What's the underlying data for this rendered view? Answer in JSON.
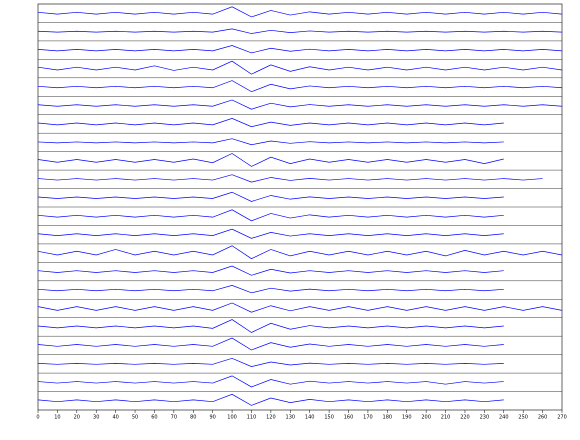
{
  "chart_data": {
    "type": "line",
    "color": "#0000ff",
    "x": [
      0,
      10,
      20,
      30,
      40,
      50,
      60,
      70,
      80,
      90,
      100,
      110,
      120,
      130,
      140,
      150,
      160,
      170,
      180,
      190,
      200,
      210,
      220,
      230,
      240,
      250,
      260,
      270
    ],
    "xlim": [
      0,
      270
    ],
    "xticks": [
      0,
      10,
      20,
      30,
      40,
      50,
      60,
      70,
      80,
      90,
      100,
      110,
      120,
      130,
      140,
      150,
      160,
      170,
      180,
      190,
      200,
      210,
      220,
      230,
      240,
      250,
      260,
      270
    ],
    "ylim": [
      -10,
      10
    ],
    "series": [
      {
        "values": [
          1,
          1,
          1,
          1,
          1,
          1,
          1,
          1,
          1,
          1,
          7,
          4,
          3,
          2,
          1.5,
          1,
          1,
          1,
          1,
          1,
          1,
          1,
          1,
          1,
          1,
          1,
          1,
          1
        ]
      },
      {
        "values": [
          0.5,
          0.5,
          0.5,
          0.5,
          0.5,
          0.5,
          0.5,
          0.5,
          0.5,
          0.5,
          3,
          2,
          1.5,
          1,
          0.8,
          0.5,
          0.5,
          0.5,
          0.5,
          0.5,
          0.5,
          0.5,
          0.5,
          0.5,
          0.5,
          0.5,
          0.5,
          0.5
        ]
      },
      {
        "values": [
          0.8,
          0.8,
          0.8,
          0.8,
          0.8,
          0.8,
          0.8,
          0.8,
          0.8,
          0.8,
          5,
          3,
          2,
          1.2,
          1,
          0.8,
          0.8,
          0.8,
          0.8,
          0.8,
          0.8,
          0.8,
          0.8,
          0.8,
          0.8,
          0.8,
          0.8,
          0.8
        ]
      },
      {
        "values": [
          1.5,
          1.5,
          1.5,
          1.5,
          1.5,
          1.5,
          3,
          2,
          1.5,
          1.5,
          8,
          6,
          4,
          3,
          2,
          1.5,
          1.5,
          1.5,
          1.5,
          1.5,
          1.5,
          1.5,
          1.5,
          1.5,
          1.5,
          1.5,
          1.5,
          1.5
        ]
      },
      {
        "values": [
          0.8,
          0.8,
          0.8,
          0.8,
          0.8,
          0.8,
          0.8,
          0.8,
          0.8,
          0.8,
          7,
          5,
          3,
          2,
          1.2,
          0.8,
          0.8,
          0.8,
          0.8,
          0.8,
          0.8,
          0.8,
          0.8,
          0.8,
          0.8,
          0.8,
          0.8,
          0.8
        ]
      },
      {
        "values": [
          0.8,
          0.8,
          0.8,
          0.8,
          0.8,
          0.8,
          0.8,
          0.8,
          0.8,
          0.8,
          6,
          4,
          2.5,
          1.5,
          1,
          0.8,
          0.8,
          0.8,
          0.8,
          0.8,
          0.8,
          0.8,
          0.8,
          0.8,
          0.8,
          0.8,
          0.8,
          0.8
        ]
      },
      {
        "values": [
          1,
          1,
          1,
          1,
          1,
          1,
          1,
          1,
          1,
          1,
          6,
          3,
          2,
          1.5,
          1,
          1,
          1,
          1,
          1,
          1,
          1,
          1,
          1,
          1,
          1,
          null,
          null,
          null
        ]
      },
      {
        "values": [
          0.5,
          0.5,
          0.5,
          0.5,
          0.5,
          0.5,
          0.5,
          0.5,
          0.5,
          0.5,
          4,
          2.5,
          1.5,
          1,
          0.8,
          0.5,
          0.5,
          0.5,
          0.5,
          0.5,
          0.5,
          0.5,
          0.5,
          0.5,
          0.5,
          null,
          null,
          null
        ]
      },
      {
        "values": [
          1.5,
          1.5,
          1.5,
          1.5,
          1.5,
          1.5,
          1.5,
          1.5,
          2,
          2,
          8,
          6,
          4,
          3,
          2,
          1.5,
          1.5,
          1.5,
          1.5,
          1.5,
          1.5,
          1.5,
          1.5,
          3,
          2,
          null,
          null,
          null
        ]
      },
      {
        "values": [
          0.8,
          0.8,
          0.8,
          0.8,
          0.8,
          0.8,
          0.8,
          0.8,
          0.8,
          0.8,
          5,
          3,
          2,
          1.2,
          1,
          0.8,
          0.8,
          0.8,
          0.8,
          0.8,
          0.8,
          0.8,
          0.8,
          0.8,
          0.8,
          0.8,
          0.8,
          null
        ]
      },
      {
        "values": [
          0.8,
          0.8,
          0.8,
          0.8,
          0.8,
          0.8,
          0.8,
          0.8,
          0.8,
          0.8,
          6,
          4,
          2.5,
          1.5,
          1,
          0.8,
          0.8,
          0.8,
          0.8,
          0.8,
          0.8,
          0.8,
          0.8,
          0.8,
          0.8,
          null,
          null,
          null
        ]
      },
      {
        "values": [
          1,
          1,
          1,
          1,
          1,
          1,
          1,
          1,
          1,
          1,
          7,
          5,
          3,
          2,
          1.5,
          1,
          1,
          1,
          1,
          1,
          1,
          1,
          1,
          1,
          1,
          null,
          null,
          null
        ]
      },
      {
        "values": [
          1,
          1,
          1,
          1,
          1,
          1,
          1,
          1,
          1,
          1,
          6,
          4,
          2.5,
          1.5,
          1,
          1,
          1,
          1,
          1,
          1,
          1,
          1,
          1,
          1,
          1,
          null,
          null,
          null
        ]
      },
      {
        "values": [
          2,
          2,
          2,
          2,
          4,
          2,
          2,
          2,
          2,
          2,
          8,
          6,
          4,
          3,
          2,
          2,
          2,
          2,
          2,
          2,
          2,
          3,
          3,
          2,
          2,
          2,
          2,
          2
        ]
      },
      {
        "values": [
          1,
          1,
          1,
          1,
          1,
          1,
          1,
          1,
          1,
          1,
          6,
          4,
          2.5,
          1.5,
          1,
          1,
          1,
          1,
          1,
          1,
          1,
          1,
          1,
          1,
          1,
          null,
          null,
          null
        ]
      },
      {
        "values": [
          0.8,
          0.8,
          0.8,
          0.8,
          0.8,
          0.8,
          0.8,
          0.8,
          0.8,
          0.8,
          5,
          3,
          2,
          1.2,
          1,
          0.8,
          0.8,
          0.8,
          0.8,
          0.8,
          0.8,
          0.8,
          0.8,
          0.8,
          0.8,
          null,
          null,
          null
        ]
      },
      {
        "values": [
          2,
          2,
          2,
          2,
          2,
          2,
          2,
          2,
          2,
          2,
          6,
          4,
          3,
          2.5,
          2,
          2,
          2,
          2,
          2,
          2,
          2,
          2,
          2,
          2,
          2,
          2,
          2,
          2
        ]
      },
      {
        "values": [
          1,
          1,
          1,
          1,
          1,
          1,
          1,
          1,
          1,
          1.5,
          8,
          6,
          4,
          2.5,
          1.5,
          1,
          1,
          1,
          1,
          1,
          1,
          1,
          1,
          1,
          1,
          null,
          null,
          null
        ]
      },
      {
        "values": [
          1,
          1,
          1,
          1,
          1,
          1,
          1,
          1,
          1,
          1,
          8,
          5,
          3,
          2,
          1.5,
          1,
          1,
          1,
          1,
          1,
          1,
          1,
          1,
          1,
          1,
          null,
          null,
          null
        ]
      },
      {
        "values": [
          0.5,
          0.5,
          0.5,
          0.5,
          0.5,
          0.5,
          0.5,
          0.5,
          0.5,
          0.5,
          6,
          3,
          2,
          1.2,
          0.8,
          0.5,
          0.5,
          0.5,
          0.5,
          0.5,
          0.5,
          0.5,
          0.5,
          0.5,
          0.5,
          null,
          null,
          null
        ]
      },
      {
        "values": [
          0.8,
          0.8,
          0.8,
          0.8,
          0.8,
          0.8,
          0.8,
          0.8,
          0.8,
          0.8,
          7,
          5,
          3,
          2,
          1.2,
          0.8,
          0.8,
          0.8,
          0.8,
          0.8,
          0.8,
          2,
          0.8,
          0.8,
          0.8,
          null,
          null,
          null
        ]
      },
      {
        "values": [
          1,
          1,
          1,
          1,
          1,
          1,
          1,
          1,
          1,
          1,
          7,
          5,
          3,
          2,
          1.5,
          1,
          1,
          1,
          1,
          1,
          1,
          1,
          1,
          1,
          1,
          null,
          null,
          null
        ]
      }
    ]
  }
}
